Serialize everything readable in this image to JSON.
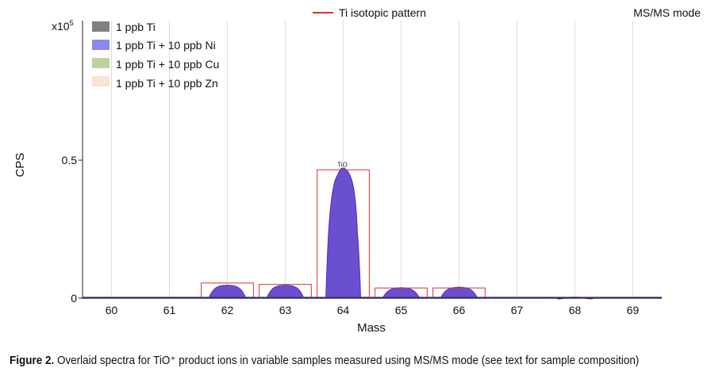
{
  "chart_data": {
    "type": "area",
    "title": "",
    "mode_label": "MS/MS mode",
    "xlabel": "Mass",
    "ylabel": "CPS",
    "y_exponent_label": "x10",
    "y_exponent_power": "5",
    "xlim": [
      59.5,
      69.5
    ],
    "ylim": [
      0,
      1.0
    ],
    "x_ticks": [
      "60",
      "61",
      "62",
      "63",
      "64",
      "65",
      "66",
      "67",
      "68",
      "69"
    ],
    "y_ticks": [
      "0",
      "0.5"
    ],
    "grid": "vertical",
    "legend_position": "top-left",
    "legend": [
      {
        "name": "1 ppb Ti",
        "color": "#808080"
      },
      {
        "name": "1 ppb Ti + 10 ppb Ni",
        "color": "#8888ee"
      },
      {
        "name": "1 ppb Ti + 10 ppb Cu",
        "color": "#bcd49a"
      },
      {
        "name": "1 ppb Ti + 10 ppb Zn",
        "color": "#fbe2d4"
      }
    ],
    "pattern_legend": {
      "name": "Ti isotopic pattern",
      "color": "#e03030"
    },
    "peak_annotation": "TiO",
    "series": [
      {
        "name": "1 ppb Ti + 10 ppb Ni",
        "color": "#6a4fd0",
        "peaks": [
          {
            "mass": 62,
            "height": 0.047
          },
          {
            "mass": 63,
            "height": 0.047
          },
          {
            "mass": 64,
            "height": 0.47
          },
          {
            "mass": 65,
            "height": 0.038
          },
          {
            "mass": 66,
            "height": 0.04
          },
          {
            "mass": 68,
            "height": 0.004
          }
        ]
      }
    ],
    "isotopic_pattern": [
      {
        "mass": 62,
        "value": 0.055
      },
      {
        "mass": 63,
        "value": 0.05
      },
      {
        "mass": 64,
        "value": 0.465
      },
      {
        "mass": 65,
        "value": 0.037
      },
      {
        "mass": 66,
        "value": 0.037
      },
      {
        "mass": 67,
        "value": 0.001
      },
      {
        "mass": 68,
        "value": 0.001
      }
    ]
  },
  "caption": {
    "label": "Figure 2.",
    "text": " Overlaid spectra for TiO⁺ product ions in variable samples measured using MS/MS mode (see text for sample composition)"
  }
}
